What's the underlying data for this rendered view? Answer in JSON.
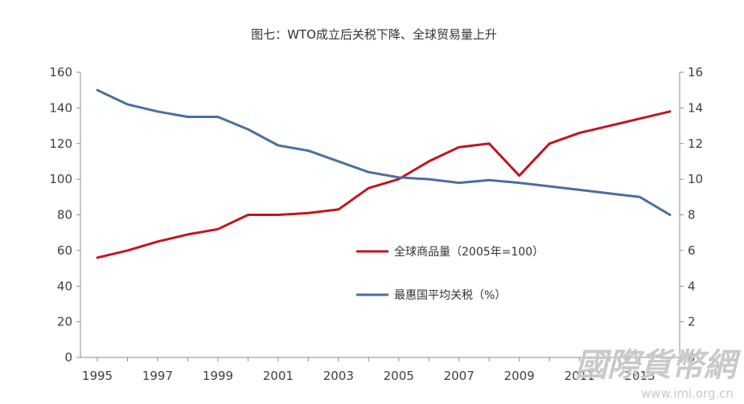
{
  "chart_data": {
    "type": "line",
    "title": "图七：WTO成立后关税下降、全球贸易量上升",
    "x": [
      1995,
      1996,
      1997,
      1998,
      1999,
      2000,
      2001,
      2002,
      2003,
      2004,
      2005,
      2006,
      2007,
      2008,
      2009,
      2010,
      2011,
      2012,
      2013,
      2014
    ],
    "x_tick_labels": [
      "1995",
      "1997",
      "1999",
      "2001",
      "2003",
      "2005",
      "2007",
      "2009",
      "2011",
      "2013"
    ],
    "y_left_ticks": [
      "0",
      "20",
      "40",
      "60",
      "80",
      "100",
      "120",
      "140",
      "160"
    ],
    "y_right_ticks": [
      "0",
      "2",
      "4",
      "6",
      "8",
      "10",
      "12",
      "14",
      "16"
    ],
    "ylim_left": [
      0,
      160
    ],
    "ylim_right": [
      0,
      16
    ],
    "legend_position": "center-right",
    "grid": false,
    "series": [
      {
        "name": "全球商品量（2005年=100）",
        "axis": "left",
        "color": "#c0161e",
        "values": [
          56,
          60,
          65,
          69,
          72,
          80,
          80,
          81,
          83,
          95,
          100,
          110,
          118,
          120,
          102,
          120,
          126,
          130,
          134,
          138
        ]
      },
      {
        "name": "最惠国平均关税（%）",
        "axis": "right",
        "color": "#4a6f9f",
        "values": [
          15.0,
          14.2,
          13.8,
          13.5,
          13.5,
          12.8,
          11.9,
          11.6,
          11.0,
          10.4,
          10.1,
          10.0,
          9.8,
          9.95,
          9.8,
          9.6,
          9.4,
          9.2,
          9.0,
          8.0
        ]
      }
    ]
  },
  "watermark": {
    "text_cn": "國際貨幣網",
    "url": "www.imi.org.cn"
  }
}
